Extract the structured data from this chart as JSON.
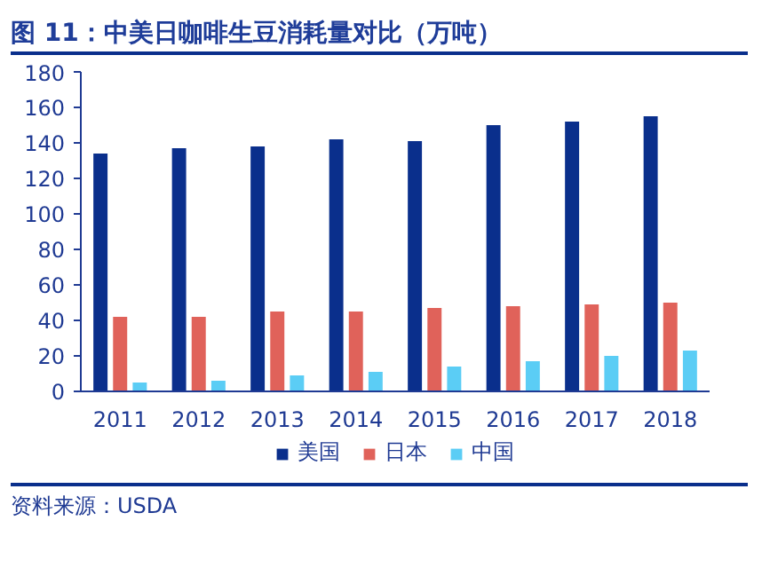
{
  "chart_data": {
    "type": "bar",
    "title": "图 11：中美日咖啡生豆消耗量对比（万吨）",
    "categories": [
      "2011",
      "2012",
      "2013",
      "2014",
      "2015",
      "2016",
      "2017",
      "2018"
    ],
    "series": [
      {
        "name": "美国",
        "color": "#0a2f8c",
        "values": [
          134,
          137,
          138,
          142,
          141,
          150,
          152,
          155
        ]
      },
      {
        "name": "日本",
        "color": "#e0625a",
        "values": [
          42,
          42,
          45,
          45,
          47,
          48,
          49,
          50
        ]
      },
      {
        "name": "中国",
        "color": "#5bcdf5",
        "values": [
          5,
          6,
          9,
          11,
          14,
          17,
          20,
          23
        ]
      }
    ],
    "ylim": [
      0,
      180
    ],
    "yticks": [
      0,
      20,
      40,
      60,
      80,
      100,
      120,
      140,
      160,
      180
    ],
    "grid": false,
    "legend": "bottom",
    "annotations": [
      "资料来源：USDA"
    ]
  }
}
